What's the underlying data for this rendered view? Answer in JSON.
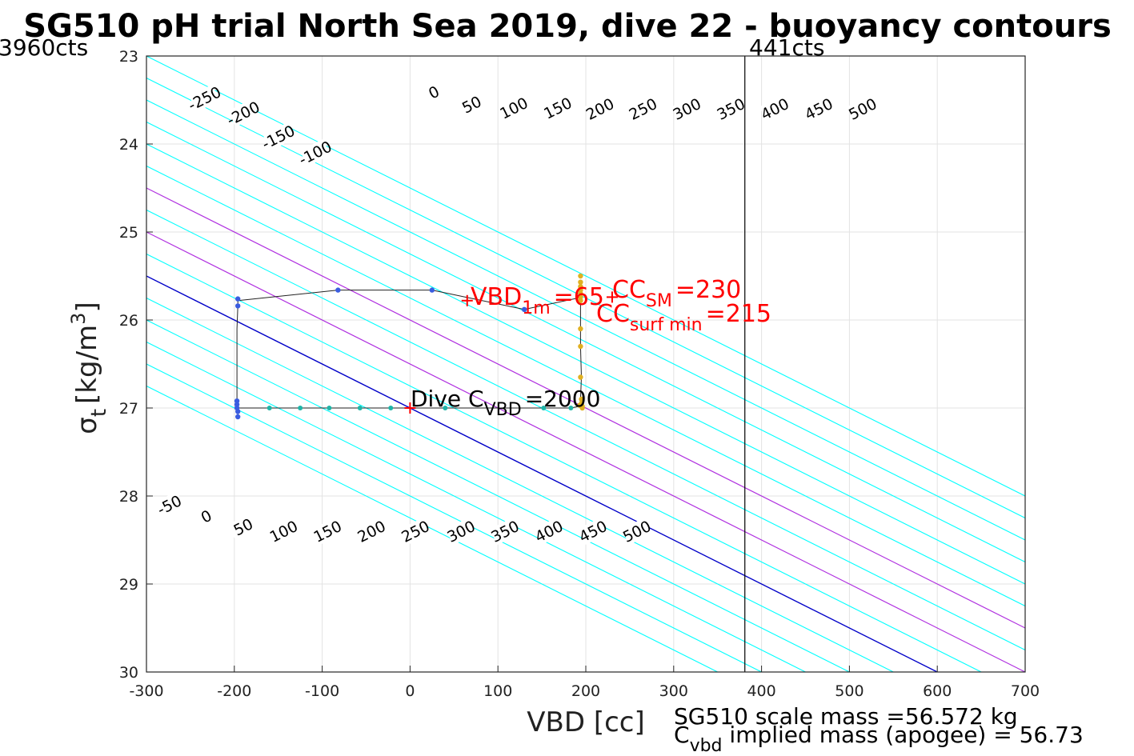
{
  "chart_data": {
    "type": "contour",
    "title": "SG510 pH trial North Sea 2019, dive 22 - buoyancy contours",
    "xlabel": "VBD [cc]",
    "ylabel_main": "σ",
    "ylabel_sub": "t",
    "ylabel_unit": "[kg/m",
    "ylabel_sup": "3",
    "ylabel_close": "]",
    "xlim": [
      -300,
      700
    ],
    "ylim": [
      30,
      23
    ],
    "y_reversed": true,
    "xticks": [
      -300,
      -200,
      -100,
      0,
      100,
      200,
      300,
      400,
      500,
      600,
      700
    ],
    "yticks": [
      23,
      24,
      25,
      26,
      27,
      28,
      29,
      30
    ],
    "grid": true,
    "contour_levels": [
      -250,
      -200,
      -150,
      -100,
      -50,
      0,
      50,
      100,
      150,
      200,
      250,
      300,
      350,
      400,
      450,
      500
    ],
    "contour_slope_cc_per_sigma": 200,
    "contour_zero_at_sigma": 27,
    "contour_colors": {
      "zero": "#0000c8",
      "highlight": "#b030e0",
      "default": "#00ffff"
    },
    "highlight_levels": [
      100,
      200
    ],
    "upper_labels": [
      {
        "level": -250,
        "x": -234,
        "y": 23.48
      },
      {
        "level": -200,
        "x": -190,
        "y": 23.65
      },
      {
        "level": -150,
        "x": -150,
        "y": 23.92
      },
      {
        "level": -100,
        "x": -108,
        "y": 24.1
      },
      {
        "level": 0,
        "x": 27,
        "y": 23.41
      },
      {
        "level": 50,
        "x": 70,
        "y": 23.55
      },
      {
        "level": 100,
        "x": 118,
        "y": 23.59
      },
      {
        "level": 150,
        "x": 168,
        "y": 23.59
      },
      {
        "level": 200,
        "x": 216,
        "y": 23.6
      },
      {
        "level": 250,
        "x": 265,
        "y": 23.6
      },
      {
        "level": 300,
        "x": 315,
        "y": 23.6
      },
      {
        "level": 350,
        "x": 365,
        "y": 23.6
      },
      {
        "level": 400,
        "x": 415,
        "y": 23.6
      },
      {
        "level": 450,
        "x": 465,
        "y": 23.6
      },
      {
        "level": 500,
        "x": 515,
        "y": 23.6
      }
    ],
    "lower_labels": [
      {
        "level": -50,
        "x": -274,
        "y": 28.1
      },
      {
        "level": 0,
        "x": -232,
        "y": 28.23
      },
      {
        "level": 50,
        "x": -190,
        "y": 28.35
      },
      {
        "level": 100,
        "x": -144,
        "y": 28.4
      },
      {
        "level": 150,
        "x": -94,
        "y": 28.4
      },
      {
        "level": 200,
        "x": -44,
        "y": 28.4
      },
      {
        "level": 250,
        "x": 6,
        "y": 28.4
      },
      {
        "level": 300,
        "x": 58,
        "y": 28.4
      },
      {
        "level": 350,
        "x": 108,
        "y": 28.4
      },
      {
        "level": 400,
        "x": 158,
        "y": 28.4
      },
      {
        "level": 450,
        "x": 208,
        "y": 28.4
      },
      {
        "level": 500,
        "x": 258,
        "y": 28.4
      }
    ],
    "trajectory": [
      [
        -196,
        25.76
      ],
      [
        -196,
        25.84
      ],
      [
        -197,
        26.1
      ],
      [
        -197,
        26.6
      ],
      [
        -197,
        26.92
      ],
      [
        -196,
        26.95
      ],
      [
        -196,
        27.0
      ],
      [
        -196,
        27.04
      ],
      [
        -196,
        27.1
      ],
      [
        -196,
        27.0
      ],
      [
        -160,
        27.0
      ],
      [
        -125,
        27.0
      ],
      [
        -92,
        27.0
      ],
      [
        -57,
        27.0
      ],
      [
        -22,
        27.0
      ],
      [
        10,
        27.0
      ],
      [
        40,
        27.0
      ],
      [
        75,
        27.0
      ],
      [
        110,
        27.0
      ],
      [
        152,
        27.0
      ],
      [
        183,
        27.0
      ],
      [
        193,
        26.98
      ],
      [
        194,
        26.9
      ],
      [
        195,
        26.65
      ],
      [
        194,
        26.3
      ],
      [
        194,
        26.1
      ],
      [
        194,
        25.8
      ],
      [
        196,
        25.74
      ],
      [
        130,
        25.88
      ],
      [
        25,
        25.66
      ],
      [
        -82,
        25.66
      ],
      [
        -196,
        25.78
      ]
    ],
    "blue_points": [
      [
        -196,
        25.76
      ],
      [
        -196,
        25.84
      ],
      [
        -82,
        25.66
      ],
      [
        25,
        25.66
      ],
      [
        130,
        25.88
      ],
      [
        -197,
        26.92
      ],
      [
        -197,
        26.96
      ],
      [
        -197,
        27.0
      ],
      [
        -196,
        27.04
      ],
      [
        -196,
        27.1
      ]
    ],
    "teal_points": [
      [
        -160,
        27.0
      ],
      [
        -125,
        27.0
      ],
      [
        -92,
        27.0
      ],
      [
        -57,
        27.0
      ],
      [
        -22,
        27.0
      ],
      [
        40,
        27.0
      ],
      [
        152,
        27.0
      ],
      [
        183,
        27.0
      ]
    ],
    "yellow_points": [
      [
        194,
        25.5
      ],
      [
        194,
        25.57
      ],
      [
        194,
        25.62
      ],
      [
        194,
        25.66
      ],
      [
        194,
        25.7
      ],
      [
        194,
        25.74
      ],
      [
        194,
        25.78
      ],
      [
        194,
        26.1
      ],
      [
        194,
        26.3
      ],
      [
        194,
        26.65
      ],
      [
        195,
        26.9
      ],
      [
        195,
        26.95
      ],
      [
        196,
        26.98
      ],
      [
        196,
        27.0
      ],
      [
        193,
        26.97
      ]
    ],
    "red_markers": [
      [
        0,
        27.0
      ],
      [
        65,
        25.78
      ],
      [
        230,
        25.74
      ]
    ],
    "vline_x": 381,
    "corner_labels": {
      "left": "3960cts",
      "right": "441cts"
    },
    "annotations": {
      "vbd1m_main": "VBD",
      "vbd1m_sub": "1m",
      "vbd1m_val": "=65",
      "ccsm_main": "CC",
      "ccsm_sub": "SM",
      "ccsm_val": "=230",
      "ccsurf_main": "CC",
      "ccsurf_sub": "surf min",
      "ccsurf_val": "=215",
      "dive_main": "Dive C",
      "dive_sub": "VBD",
      "dive_val": "=2000"
    },
    "footer": {
      "line1": "SG510 scale mass =56.572 kg",
      "line2_main": "C",
      "line2_sub": "vbd",
      "line2_rest": " implied mass (apogee) = 56.73"
    }
  }
}
